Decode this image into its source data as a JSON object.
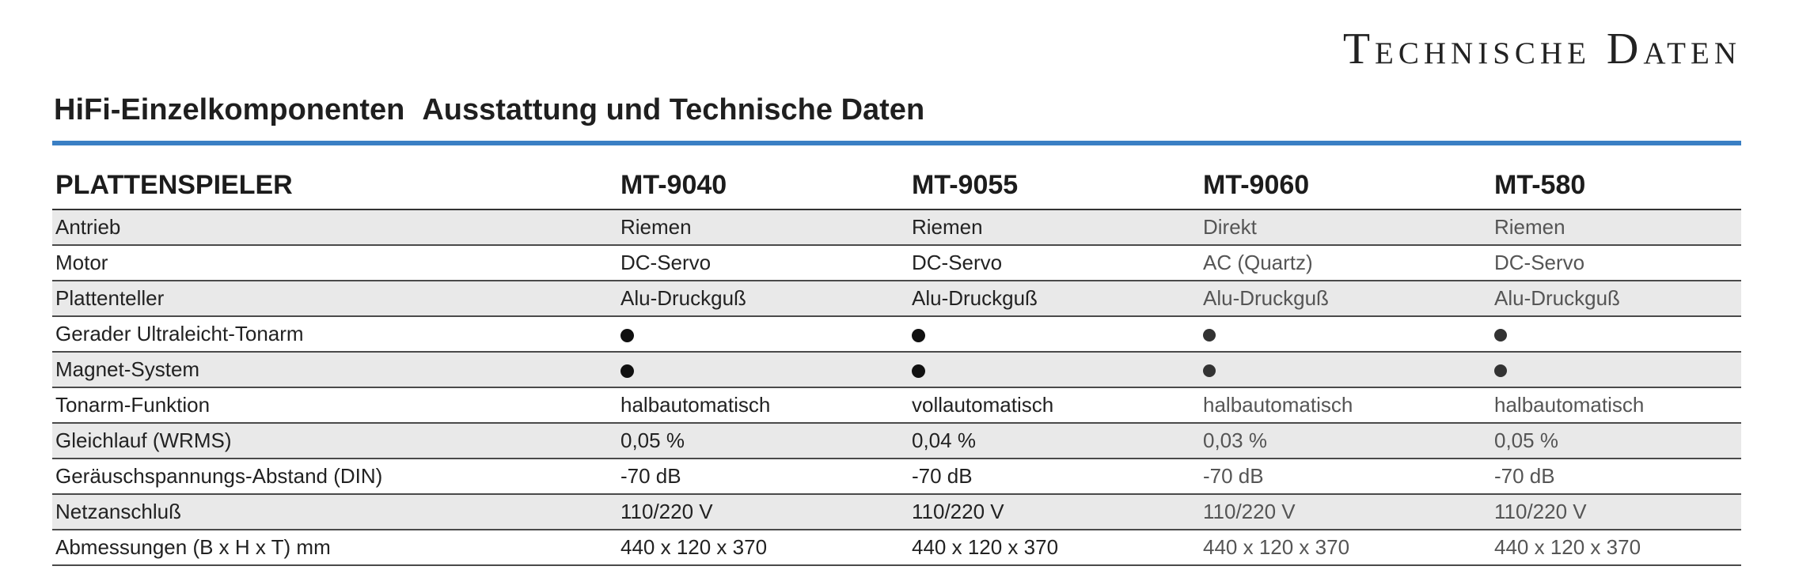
{
  "corner_title": "Technische Daten",
  "heading": {
    "part1": "HiFi-Einzelkomponenten",
    "part2": "Ausstattung und Technische Daten"
  },
  "table": {
    "category": "PLATTENSPIELER",
    "models": [
      "MT-9040",
      "MT-9055",
      "MT-9060",
      "MT-580"
    ],
    "rows": [
      {
        "label": "Antrieb",
        "values": [
          "Riemen",
          "Riemen",
          "Direkt",
          "Riemen"
        ]
      },
      {
        "label": "Motor",
        "values": [
          "DC-Servo",
          "DC-Servo",
          "AC (Quartz)",
          "DC-Servo"
        ]
      },
      {
        "label": "Plattenteller",
        "values": [
          "Alu-Druckguß",
          "Alu-Druckguß",
          "Alu-Druckguß",
          "Alu-Druckguß"
        ]
      },
      {
        "label": "Gerader Ultraleicht-Tonarm",
        "values": [
          "●",
          "●",
          "●",
          "●"
        ]
      },
      {
        "label": "Magnet-System",
        "values": [
          "●",
          "●",
          "●",
          "●"
        ]
      },
      {
        "label": "Tonarm-Funktion",
        "values": [
          "halbautomatisch",
          "vollautomatisch",
          "halbautomatisch",
          "halbautomatisch"
        ]
      },
      {
        "label": "Gleichlauf  (WRMS)",
        "values": [
          "0,05 %",
          "0,04 %",
          "0,03 %",
          "0,05 %"
        ]
      },
      {
        "label": "Geräuschspannungs-Abstand  (DIN)",
        "values": [
          "-70 dB",
          "-70 dB",
          "-70 dB",
          "-70 dB"
        ]
      },
      {
        "label": "Netzanschluß",
        "values": [
          "110/220 V",
          "110/220 V",
          "110/220 V",
          "110/220 V"
        ]
      },
      {
        "label": "Abmessungen  (B x H x T) mm",
        "values": [
          "440 x 120 x 370",
          "440 x 120 x 370",
          "440 x 120 x 370",
          "440 x 120 x 370"
        ]
      }
    ]
  },
  "colors": {
    "rule_blue": "#3a7fc4",
    "row_shade": "#e9e9e9"
  }
}
